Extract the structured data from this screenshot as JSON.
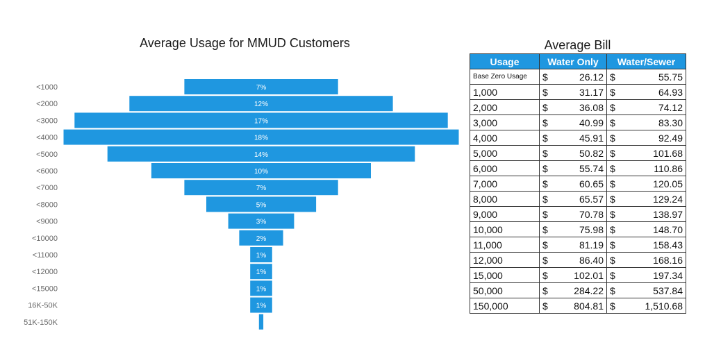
{
  "chart_data": {
    "type": "bar",
    "title": "Average Usage for MMUD Customers",
    "categories": [
      "<1000",
      "<2000",
      "<3000",
      "<4000",
      "<5000",
      "<6000",
      "<7000",
      "<8000",
      "<9000",
      "<10000",
      "<11000",
      "<12000",
      "<15000",
      "16K-50K",
      "51K-150K"
    ],
    "values": [
      7,
      12,
      17,
      18,
      14,
      10,
      7,
      5,
      3,
      2,
      1,
      1,
      1,
      1,
      0.2
    ],
    "labels": [
      "7%",
      "12%",
      "17%",
      "18%",
      "14%",
      "10%",
      "7%",
      "5%",
      "3%",
      "2%",
      "1%",
      "1%",
      "1%",
      "1%",
      ""
    ],
    "bar_color": "#1f97e0",
    "label_color": "#ffffff"
  },
  "table": {
    "title": "Average Bill",
    "header_color": "#1f97e0",
    "headers": [
      "Usage",
      "Water Only",
      "Water/Sewer"
    ],
    "currency": "$",
    "rows": [
      {
        "usage": "Base Zero Usage",
        "water": "26.12",
        "sewer": "55.75"
      },
      {
        "usage": "1,000",
        "water": "31.17",
        "sewer": "64.93"
      },
      {
        "usage": "2,000",
        "water": "36.08",
        "sewer": "74.12"
      },
      {
        "usage": "3,000",
        "water": "40.99",
        "sewer": "83.30"
      },
      {
        "usage": "4,000",
        "water": "45.91",
        "sewer": "92.49"
      },
      {
        "usage": "5,000",
        "water": "50.82",
        "sewer": "101.68"
      },
      {
        "usage": "6,000",
        "water": "55.74",
        "sewer": "110.86"
      },
      {
        "usage": "7,000",
        "water": "60.65",
        "sewer": "120.05"
      },
      {
        "usage": "8,000",
        "water": "65.57",
        "sewer": "129.24"
      },
      {
        "usage": "9,000",
        "water": "70.78",
        "sewer": "138.97"
      },
      {
        "usage": "10,000",
        "water": "75.98",
        "sewer": "148.70"
      },
      {
        "usage": "11,000",
        "water": "81.19",
        "sewer": "158.43"
      },
      {
        "usage": "12,000",
        "water": "86.40",
        "sewer": "168.16"
      },
      {
        "usage": "15,000",
        "water": "102.01",
        "sewer": "197.34"
      },
      {
        "usage": "50,000",
        "water": "284.22",
        "sewer": "537.84"
      },
      {
        "usage": "150,000",
        "water": "804.81",
        "sewer": "1,510.68"
      }
    ]
  }
}
